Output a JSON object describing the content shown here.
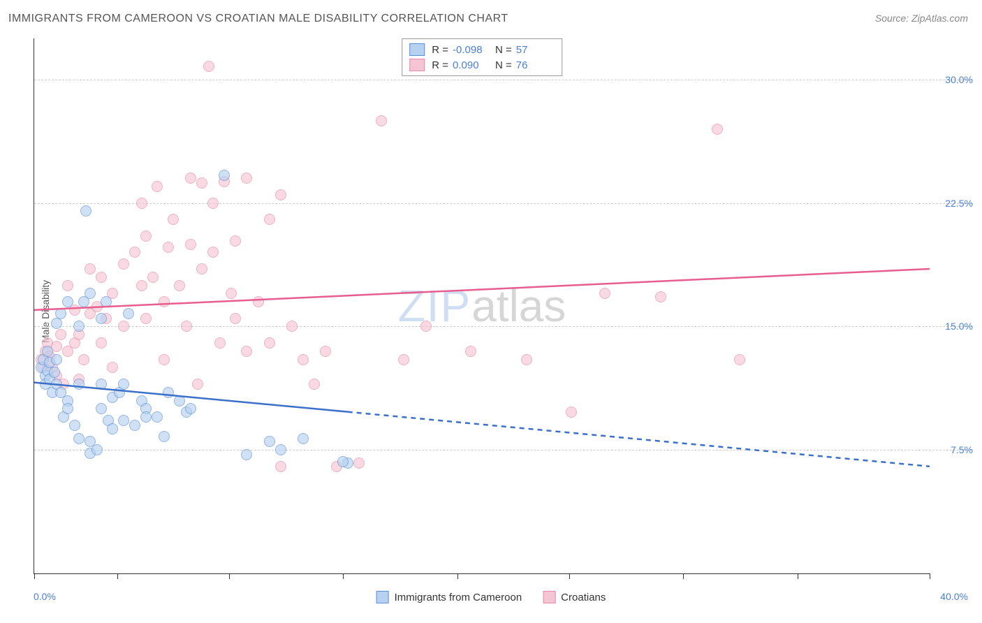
{
  "title": "IMMIGRANTS FROM CAMEROON VS CROATIAN MALE DISABILITY CORRELATION CHART",
  "source": "Source: ZipAtlas.com",
  "ylabel": "Male Disability",
  "watermark_zip": "ZIP",
  "watermark_atlas": "atlas",
  "chart": {
    "type": "scatter",
    "xlim": [
      0,
      40
    ],
    "ylim": [
      0,
      32.5
    ],
    "yticks": [
      7.5,
      15.0,
      22.5,
      30.0
    ],
    "ytick_labels": [
      "7.5%",
      "15.0%",
      "22.5%",
      "30.0%"
    ],
    "xtick_positions": [
      0,
      3.7,
      8.7,
      13.8,
      18.9,
      23.9,
      29.0,
      34.1,
      40.0
    ],
    "xaxis_min_label": "0.0%",
    "xaxis_max_label": "40.0%",
    "background_color": "#ffffff",
    "grid_color": "#cccccc",
    "axis_color": "#333333",
    "series": {
      "s1": {
        "name": "Immigrants from Cameroon",
        "color_fill": "#b7d2f0",
        "color_stroke": "#5b8fd6",
        "line_color": "#3b6fc9",
        "marker_radius": 8,
        "R": "-0.098",
        "N": "57",
        "trend": {
          "x0": 0,
          "y0": 11.6,
          "x1": 40,
          "y1": 6.5,
          "solid_until_x": 14.0
        },
        "points": [
          [
            0.3,
            12.5
          ],
          [
            0.4,
            13.0
          ],
          [
            0.5,
            12.0
          ],
          [
            0.5,
            11.5
          ],
          [
            0.6,
            12.3
          ],
          [
            0.6,
            13.5
          ],
          [
            0.7,
            11.8
          ],
          [
            0.7,
            12.8
          ],
          [
            0.8,
            11.0
          ],
          [
            0.9,
            12.2
          ],
          [
            1.0,
            11.5
          ],
          [
            1.0,
            13.0
          ],
          [
            1.0,
            15.2
          ],
          [
            1.2,
            15.8
          ],
          [
            1.2,
            11.0
          ],
          [
            1.3,
            9.5
          ],
          [
            1.5,
            10.5
          ],
          [
            1.5,
            16.5
          ],
          [
            1.5,
            10.0
          ],
          [
            1.8,
            9.0
          ],
          [
            2.0,
            8.2
          ],
          [
            2.0,
            11.5
          ],
          [
            2.0,
            15.0
          ],
          [
            2.2,
            16.5
          ],
          [
            2.5,
            17.0
          ],
          [
            2.5,
            8.0
          ],
          [
            2.5,
            7.3
          ],
          [
            2.3,
            22.0
          ],
          [
            2.8,
            7.5
          ],
          [
            3.0,
            10.0
          ],
          [
            3.0,
            11.5
          ],
          [
            3.2,
            16.5
          ],
          [
            3.0,
            15.5
          ],
          [
            3.3,
            9.3
          ],
          [
            3.5,
            8.8
          ],
          [
            3.5,
            10.7
          ],
          [
            3.8,
            11.0
          ],
          [
            4.0,
            9.3
          ],
          [
            4.0,
            11.5
          ],
          [
            4.2,
            15.8
          ],
          [
            4.5,
            9.0
          ],
          [
            4.8,
            10.5
          ],
          [
            5.0,
            10.0
          ],
          [
            5.0,
            9.5
          ],
          [
            5.5,
            9.5
          ],
          [
            5.8,
            8.3
          ],
          [
            6.0,
            11.0
          ],
          [
            6.5,
            10.5
          ],
          [
            6.8,
            9.8
          ],
          [
            7.0,
            10.0
          ],
          [
            8.5,
            24.2
          ],
          [
            9.5,
            7.2
          ],
          [
            10.5,
            8.0
          ],
          [
            11.0,
            7.5
          ],
          [
            12.0,
            8.2
          ],
          [
            14.0,
            6.7
          ],
          [
            13.8,
            6.8
          ]
        ]
      },
      "s2": {
        "name": "Croatians",
        "color_fill": "#f6c5d3",
        "color_stroke": "#e68aa8",
        "line_color": "#e85d8f",
        "marker_radius": 8,
        "R": "0.090",
        "N": "76",
        "trend": {
          "x0": 0,
          "y0": 16.0,
          "x1": 40,
          "y1": 18.5,
          "solid_until_x": 40
        },
        "points": [
          [
            0.3,
            13.0
          ],
          [
            0.4,
            12.5
          ],
          [
            0.5,
            13.5
          ],
          [
            0.6,
            14.0
          ],
          [
            0.7,
            13.2
          ],
          [
            0.8,
            12.5
          ],
          [
            1.0,
            13.8
          ],
          [
            1.0,
            12.0
          ],
          [
            1.2,
            14.5
          ],
          [
            1.3,
            11.5
          ],
          [
            1.5,
            13.5
          ],
          [
            1.5,
            17.5
          ],
          [
            1.8,
            16.0
          ],
          [
            1.8,
            14.0
          ],
          [
            2.0,
            14.5
          ],
          [
            2.0,
            11.8
          ],
          [
            2.2,
            13.0
          ],
          [
            2.5,
            15.8
          ],
          [
            2.5,
            18.5
          ],
          [
            2.8,
            16.2
          ],
          [
            3.0,
            18.0
          ],
          [
            3.0,
            14.0
          ],
          [
            3.2,
            15.5
          ],
          [
            3.5,
            12.5
          ],
          [
            3.5,
            17.0
          ],
          [
            4.0,
            18.8
          ],
          [
            4.0,
            15.0
          ],
          [
            4.5,
            19.5
          ],
          [
            4.8,
            17.5
          ],
          [
            4.8,
            22.5
          ],
          [
            5.0,
            15.5
          ],
          [
            5.0,
            20.5
          ],
          [
            5.3,
            18.0
          ],
          [
            5.5,
            23.5
          ],
          [
            5.8,
            16.5
          ],
          [
            5.8,
            13.0
          ],
          [
            6.0,
            19.8
          ],
          [
            6.2,
            21.5
          ],
          [
            6.5,
            17.5
          ],
          [
            6.8,
            15.0
          ],
          [
            7.0,
            20.0
          ],
          [
            7.0,
            24.0
          ],
          [
            7.3,
            11.5
          ],
          [
            7.5,
            18.5
          ],
          [
            7.5,
            23.7
          ],
          [
            7.8,
            30.8
          ],
          [
            8.0,
            19.5
          ],
          [
            8.0,
            22.5
          ],
          [
            8.3,
            14.0
          ],
          [
            8.5,
            23.8
          ],
          [
            8.8,
            17.0
          ],
          [
            9.0,
            15.5
          ],
          [
            9.0,
            20.2
          ],
          [
            9.5,
            24.0
          ],
          [
            9.5,
            13.5
          ],
          [
            10.0,
            16.5
          ],
          [
            10.5,
            21.5
          ],
          [
            10.5,
            14.0
          ],
          [
            11.0,
            23.0
          ],
          [
            11.0,
            6.5
          ],
          [
            11.5,
            15.0
          ],
          [
            12.0,
            13.0
          ],
          [
            12.5,
            11.5
          ],
          [
            13.0,
            13.5
          ],
          [
            13.5,
            6.5
          ],
          [
            14.5,
            6.7
          ],
          [
            15.5,
            27.5
          ],
          [
            16.5,
            13.0
          ],
          [
            17.5,
            15.0
          ],
          [
            19.5,
            13.5
          ],
          [
            22.0,
            13.0
          ],
          [
            24.0,
            9.8
          ],
          [
            25.5,
            17.0
          ],
          [
            28.0,
            16.8
          ],
          [
            30.5,
            27.0
          ],
          [
            31.5,
            13.0
          ]
        ]
      }
    },
    "stats_legend": {
      "R_label": "R =",
      "N_label": "N ="
    },
    "bottom_legend": {
      "s1_label": "Immigrants from Cameroon",
      "s2_label": "Croatians"
    }
  }
}
